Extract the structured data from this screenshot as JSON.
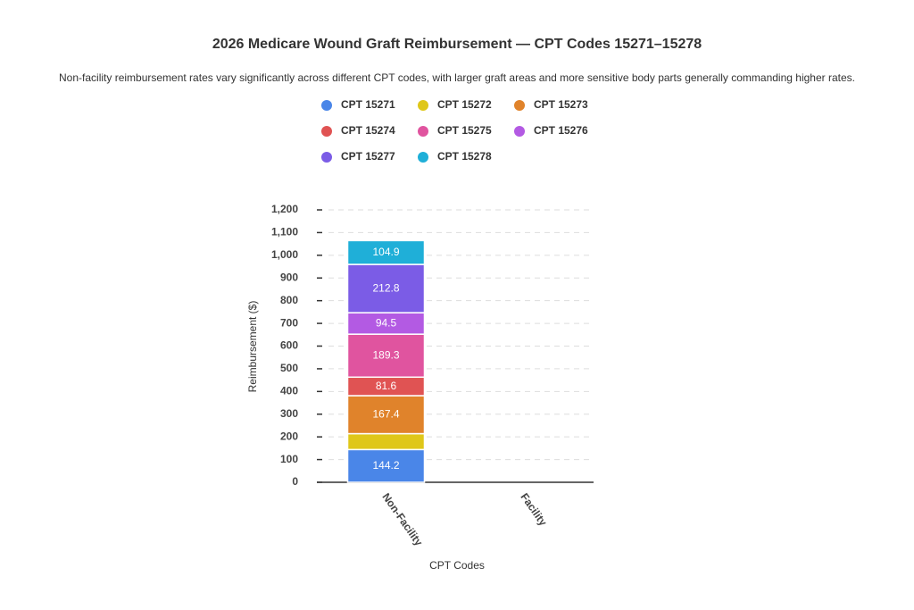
{
  "chart_data": {
    "type": "stacked_bar",
    "title": "2026 Medicare Wound Graft Reimbursement — CPT Codes 15271–15278",
    "subtitle": "Non-facility reimbursement rates vary significantly across different CPT codes, with larger graft areas and more sensitive body parts generally commanding higher rates.",
    "x_label": "CPT Codes",
    "y_label": "Reimbursement ($)",
    "categories": [
      "Non-Facility",
      "Facility"
    ],
    "series": [
      {
        "name": "CPT 15271",
        "color": "#4a86e8",
        "values": [
          144.2,
          null
        ]
      },
      {
        "name": "CPT 15272",
        "color": "#dfc719",
        "values": [
          70,
          null
        ]
      },
      {
        "name": "CPT 15273",
        "color": "#e0832b",
        "values": [
          167.4,
          null
        ]
      },
      {
        "name": "CPT 15274",
        "color": "#e05353",
        "values": [
          81.6,
          null
        ]
      },
      {
        "name": "CPT 15275",
        "color": "#e0549f",
        "values": [
          189.3,
          null
        ]
      },
      {
        "name": "CPT 15276",
        "color": "#b35ae3",
        "values": [
          94.5,
          null
        ]
      },
      {
        "name": "CPT 15277",
        "color": "#7b5ce6",
        "values": [
          212.8,
          null
        ]
      },
      {
        "name": "CPT 15278",
        "color": "#1fafd8",
        "values": [
          104.9,
          null
        ]
      }
    ],
    "ylim": [
      0,
      1200
    ],
    "yticks": [
      0,
      100,
      200,
      300,
      400,
      500,
      600,
      700,
      800,
      900,
      {
        "value": 1000,
        "label": "1,000"
      },
      {
        "value": 1100,
        "label": "1,100"
      },
      {
        "value": 1200,
        "label": "1,200"
      }
    ],
    "grid": true
  }
}
